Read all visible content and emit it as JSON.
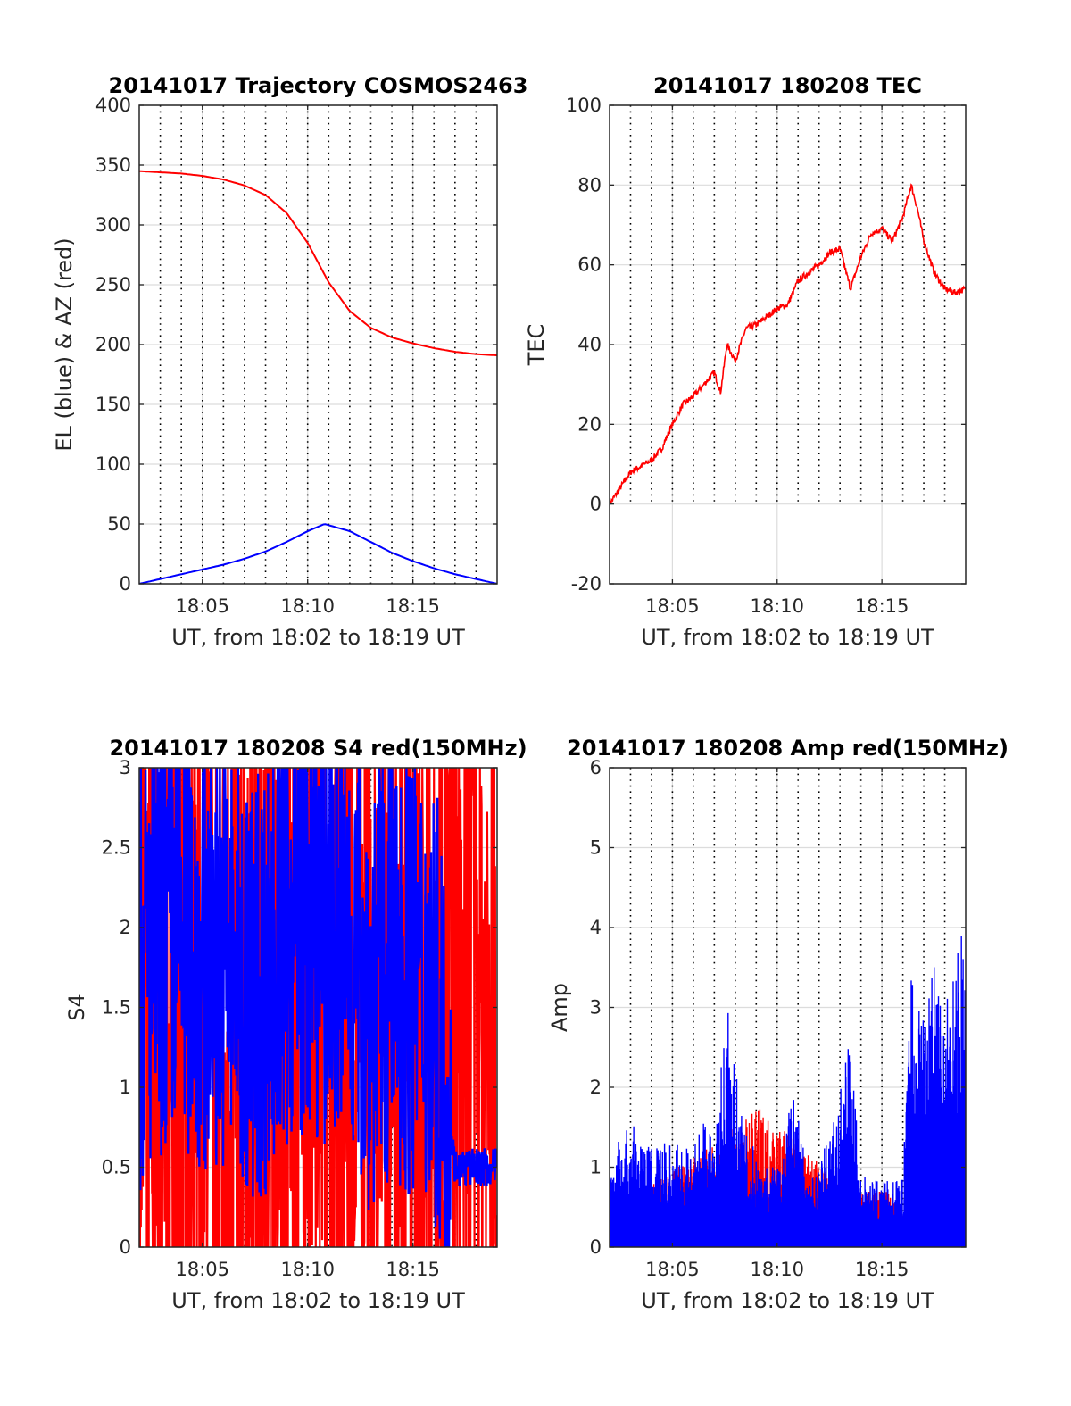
{
  "chart_data": [
    {
      "type": "line",
      "title": "20141017 Trajectory COSMOS2463",
      "xlabel": "UT, from 18:02 to 18:19 UT",
      "ylabel": "EL (blue) & AZ (red)",
      "xlim": [
        "18:02",
        "18:19"
      ],
      "ylim": [
        0,
        400
      ],
      "xticks": [
        "18:05",
        "18:10",
        "18:15"
      ],
      "yticks": [
        "0",
        "50",
        "100",
        "150",
        "200",
        "250",
        "300",
        "350",
        "400"
      ],
      "grid": "minute dotted vertical lines, solid major grid",
      "series": [
        {
          "color": "#ff0000",
          "x": [
            "18:02",
            "18:04",
            "18:05",
            "18:06",
            "18:07",
            "18:08",
            "18:09",
            "18:10",
            "18:11",
            "18:12",
            "18:13",
            "18:14",
            "18:15",
            "18:16",
            "18:17",
            "18:18",
            "18:19"
          ],
          "values": [
            345,
            343,
            341,
            338,
            333,
            325,
            310,
            285,
            252,
            228,
            214,
            206,
            201,
            197,
            194,
            192,
            191
          ]
        },
        {
          "color": "#0000ff",
          "x": [
            "18:02",
            "18:04",
            "18:05",
            "18:06",
            "18:07",
            "18:08",
            "18:09",
            "18:10",
            "18:10.8",
            "18:11",
            "18:12",
            "18:13",
            "18:14",
            "18:15",
            "18:16",
            "18:17",
            "18:18",
            "18:19"
          ],
          "values": [
            0,
            8,
            12,
            16,
            21,
            27,
            35,
            44,
            50,
            49,
            44,
            35,
            26,
            19,
            13,
            8,
            4,
            0
          ]
        }
      ]
    },
    {
      "type": "line",
      "title": "20141017 180208 TEC",
      "xlabel": "UT, from 18:02 to 18:19 UT",
      "ylabel": "TEC",
      "xlim": [
        "18:02",
        "18:19"
      ],
      "ylim": [
        -20,
        100
      ],
      "xticks": [
        "18:05",
        "18:10",
        "18:15"
      ],
      "yticks": [
        "-20",
        "0",
        "20",
        "40",
        "60",
        "80",
        "100"
      ],
      "series": [
        {
          "color": "#ff0000",
          "x": [
            "18:02",
            "18:03",
            "18:04",
            "18:04.5",
            "18:05",
            "18:05.5",
            "18:06",
            "18:06.5",
            "18:07",
            "18:07.3",
            "18:07.6",
            "18:08",
            "18:08.5",
            "18:09",
            "18:09.5",
            "18:10",
            "18:10.5",
            "18:11",
            "18:11.5",
            "18:12",
            "18:12.5",
            "18:13",
            "18:13.5",
            "18:14",
            "18:14.5",
            "18:15",
            "18:15.5",
            "18:16",
            "18:16.4",
            "18:16.7",
            "18:17",
            "18:17.5",
            "18:18",
            "18:18.5",
            "18:19"
          ],
          "values": [
            0,
            8,
            11,
            14,
            20,
            25,
            27,
            30,
            33,
            28,
            40,
            36,
            44,
            45,
            47,
            49,
            50,
            56,
            58,
            60,
            63,
            64,
            54,
            62,
            68,
            69,
            66,
            72,
            80,
            74,
            66,
            58,
            54,
            53,
            54
          ]
        }
      ]
    },
    {
      "type": "line",
      "title": "20141017 180208 S4 red(150MHz)",
      "xlabel": "UT, from 18:02 to 18:19 UT",
      "ylabel": "S4",
      "xlim": [
        "18:02",
        "18:19"
      ],
      "ylim": [
        0,
        3
      ],
      "xticks": [
        "18:05",
        "18:10",
        "18:15"
      ],
      "yticks": [
        "0",
        "0.5",
        "1",
        "1.5",
        "2",
        "2.5",
        "3"
      ],
      "series": [
        {
          "color": "#ff0000",
          "x": [
            "18:02",
            "18:03",
            "18:04",
            "18:05",
            "18:06",
            "18:07",
            "18:08",
            "18:09",
            "18:10",
            "18:11",
            "18:12",
            "18:13",
            "18:14",
            "18:15",
            "18:16",
            "18:17",
            "18:18",
            "18:19"
          ],
          "values": [
            1.6,
            1.2,
            1.8,
            1.3,
            1.2,
            1.0,
            1.5,
            1.4,
            1.6,
            1.5,
            1.4,
            1.3,
            1.5,
            1.4,
            1.3,
            1.4,
            1.5,
            1.2
          ]
        },
        {
          "color": "#0000ff",
          "x": [
            "18:02",
            "18:03",
            "18:04",
            "18:05",
            "18:06",
            "18:07",
            "18:08",
            "18:09",
            "18:10",
            "18:11",
            "18:12",
            "18:13",
            "18:14",
            "18:15",
            "18:16",
            "18:17",
            "18:18",
            "18:19"
          ],
          "values": [
            1.7,
            1.9,
            2.0,
            1.8,
            1.9,
            1.6,
            1.7,
            2.0,
            2.1,
            2.0,
            1.9,
            1.6,
            1.8,
            1.7,
            1.6,
            0.5,
            0.5,
            0.5
          ]
        }
      ]
    },
    {
      "type": "line",
      "title": "20141017 180208 Amp red(150MHz)",
      "xlabel": "UT, from 18:02 to 18:19 UT",
      "ylabel": "Amp",
      "xlim": [
        "18:02",
        "18:19"
      ],
      "ylim": [
        0,
        6
      ],
      "xticks": [
        "18:05",
        "18:10",
        "18:15"
      ],
      "yticks": [
        "0",
        "1",
        "2",
        "3",
        "4",
        "5",
        "6"
      ],
      "series": [
        {
          "color": "#ff0000",
          "x": [
            "18:02",
            "18:09.2",
            "18:13.5",
            "18:15.5",
            "18:16.5",
            "18:19"
          ],
          "values": [
            0.4,
            1.75,
            0.7,
            0.7,
            0.1,
            0.1
          ]
        },
        {
          "color": "#0000ff",
          "x": [
            "18:02",
            "18:02.8",
            "18:04",
            "18:05",
            "18:06",
            "18:06.5",
            "18:07",
            "18:07.6",
            "18:08",
            "18:08.5",
            "18:09",
            "18:10",
            "18:10.8",
            "18:11.5",
            "18:12",
            "18:13",
            "18:13.4",
            "18:14",
            "18:15",
            "18:16",
            "18:16.4",
            "18:17",
            "18:17.5",
            "18:18",
            "18:18.5",
            "18:19"
          ],
          "values": [
            1.0,
            1.6,
            1.3,
            1.3,
            1.2,
            1.7,
            1.2,
            3.2,
            2.3,
            1.4,
            1.2,
            1.0,
            2.1,
            0.9,
            1.0,
            1.9,
            2.75,
            0.9,
            0.8,
            0.9,
            3.7,
            3.3,
            3.6,
            3.3,
            4.2,
            4.1
          ]
        }
      ]
    }
  ]
}
